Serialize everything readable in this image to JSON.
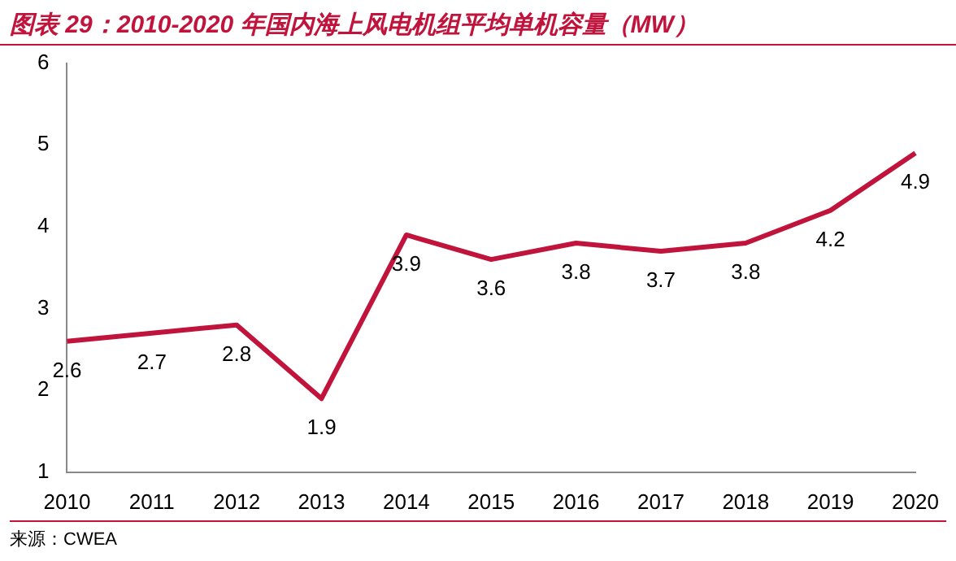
{
  "chart_data": {
    "type": "line",
    "title": "图表 29：2010-2020 年国内海上风电机组平均单机容量（MW）",
    "categories": [
      "2010",
      "2011",
      "2012",
      "2013",
      "2014",
      "2015",
      "2016",
      "2017",
      "2018",
      "2019",
      "2020"
    ],
    "series": [
      {
        "color": "#c0143c",
        "values": [
          2.6,
          2.7,
          2.8,
          1.9,
          3.9,
          3.6,
          3.8,
          3.7,
          3.8,
          4.2,
          4.9
        ]
      }
    ],
    "ylim": [
      1,
      6
    ],
    "yticks": [
      1,
      2,
      3,
      4,
      5,
      6
    ],
    "grid": false,
    "legend": false,
    "marker": "none",
    "data_labels": true,
    "annotations": [
      "来源：CWEA"
    ]
  }
}
